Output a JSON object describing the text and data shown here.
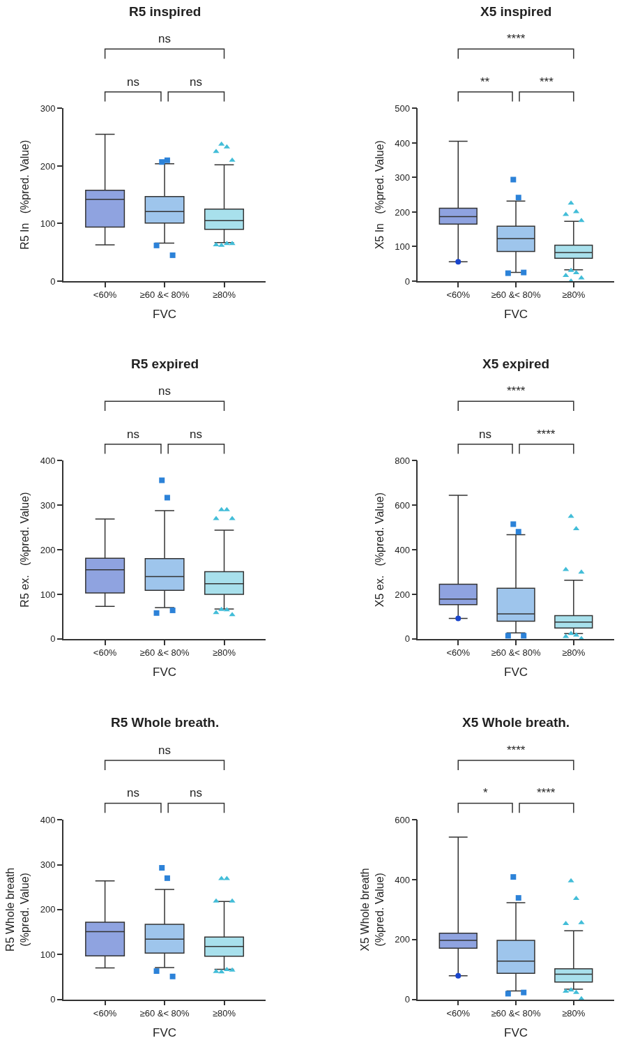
{
  "chart_data": [
    {
      "type": "box",
      "title": "R5 inspired",
      "xlabel": "FVC",
      "ylabel": "R5 In   (%pred. Value)",
      "categories": [
        "<60%",
        "≥60 &< 80%",
        "≥80%"
      ],
      "colors": [
        "#8fa3e0",
        "#9ec5ec",
        "#a8e0ec"
      ],
      "marker": [
        "circle",
        "square",
        "triangle"
      ],
      "ylim": [
        0,
        300
      ],
      "yticks": [
        0,
        100,
        200,
        300
      ],
      "annotations": [
        "ns",
        "ns",
        "ns"
      ],
      "boxes": [
        {
          "low": 63,
          "q1": 94,
          "median": 142,
          "q3": 158,
          "high": 255
        },
        {
          "low": 66,
          "q1": 101,
          "median": 121,
          "q3": 147,
          "high": 204,
          "outliers": [
            207,
            210,
            62,
            45
          ]
        },
        {
          "low": 67,
          "q1": 90,
          "median": 105,
          "q3": 125,
          "high": 202,
          "outliers": [
            238,
            233,
            225,
            210,
            62,
            65,
            63,
            65
          ]
        }
      ]
    },
    {
      "type": "box",
      "title": "X5 inspired",
      "xlabel": "FVC",
      "ylabel": "X5 In   (%pred. Value)",
      "categories": [
        "<60%",
        "≥60 &< 80%",
        "≥80%"
      ],
      "colors": [
        "#8fa3e0",
        "#9ec5ec",
        "#a8e0ec"
      ],
      "marker": [
        "circle",
        "square",
        "triangle"
      ],
      "ylim": [
        0,
        500
      ],
      "yticks": [
        0,
        100,
        200,
        300,
        400,
        500
      ],
      "annotations": [
        "****",
        "**",
        "***"
      ],
      "boxes": [
        {
          "low": 56,
          "q1": 165,
          "median": 187,
          "q3": 211,
          "high": 405,
          "outliers": [
            56
          ]
        },
        {
          "low": 25,
          "q1": 86,
          "median": 123,
          "q3": 159,
          "high": 232,
          "outliers": [
            294,
            242,
            23,
            25
          ]
        },
        {
          "low": 33,
          "q1": 66,
          "median": 83,
          "q3": 104,
          "high": 173,
          "outliers": [
            226,
            201,
            193,
            175,
            31,
            24,
            16,
            9,
            0
          ]
        }
      ]
    },
    {
      "type": "box",
      "title": "R5 expired",
      "xlabel": "FVC",
      "ylabel": "R5 ex.   (%pred. Value)",
      "categories": [
        "<60%",
        "≥60 &< 80%",
        "≥80%"
      ],
      "colors": [
        "#8fa3e0",
        "#9ec5ec",
        "#a8e0ec"
      ],
      "marker": [
        "circle",
        "square",
        "triangle"
      ],
      "ylim": [
        0,
        400
      ],
      "yticks": [
        0,
        100,
        200,
        300,
        400
      ],
      "annotations": [
        "ns",
        "ns",
        "ns"
      ],
      "boxes": [
        {
          "low": 73,
          "q1": 103,
          "median": 155,
          "q3": 181,
          "high": 269
        },
        {
          "low": 70,
          "q1": 109,
          "median": 140,
          "q3": 180,
          "high": 288,
          "outliers": [
            356,
            317,
            58,
            64
          ]
        },
        {
          "low": 67,
          "q1": 100,
          "median": 124,
          "q3": 151,
          "high": 244,
          "outliers": [
            290,
            290,
            270,
            270,
            66,
            65,
            59,
            54
          ]
        }
      ]
    },
    {
      "type": "box",
      "title": "X5 expired",
      "xlabel": "FVC",
      "ylabel": "X5 ex.   (%pred. Value)",
      "categories": [
        "<60%",
        "≥60 &< 80%",
        "≥80%"
      ],
      "colors": [
        "#8fa3e0",
        "#9ec5ec",
        "#a8e0ec"
      ],
      "marker": [
        "circle",
        "square",
        "triangle"
      ],
      "ylim": [
        0,
        800
      ],
      "yticks": [
        0,
        200,
        400,
        600,
        800
      ],
      "annotations": [
        "****",
        "ns",
        "****"
      ],
      "boxes": [
        {
          "low": 92,
          "q1": 154,
          "median": 179,
          "q3": 245,
          "high": 645,
          "outliers": [
            92
          ]
        },
        {
          "low": 27,
          "q1": 79,
          "median": 112,
          "q3": 227,
          "high": 468,
          "outliers": [
            515,
            481,
            14,
            14
          ]
        },
        {
          "low": 24,
          "q1": 49,
          "median": 75,
          "q3": 104,
          "high": 263,
          "outliers": [
            550,
            494,
            311,
            299,
            24,
            17,
            10,
            1
          ]
        }
      ]
    },
    {
      "type": "box",
      "title": "R5 Whole breath.",
      "xlabel": "FVC",
      "ylabel": "R5 Whole breath\n(%pred. Value)",
      "categories": [
        "<60%",
        "≥60 &< 80%",
        "≥80%"
      ],
      "colors": [
        "#8fa3e0",
        "#9ec5ec",
        "#a8e0ec"
      ],
      "marker": [
        "circle",
        "square",
        "triangle"
      ],
      "ylim": [
        0,
        400
      ],
      "yticks": [
        0,
        100,
        200,
        300,
        400
      ],
      "annotations": [
        "ns",
        "ns",
        "ns"
      ],
      "boxes": [
        {
          "low": 70,
          "q1": 97,
          "median": 151,
          "q3": 172,
          "high": 264
        },
        {
          "low": 71,
          "q1": 103,
          "median": 134,
          "q3": 167,
          "high": 245,
          "outliers": [
            293,
            270,
            63,
            51
          ]
        },
        {
          "low": 67,
          "q1": 96,
          "median": 118,
          "q3": 139,
          "high": 218,
          "outliers": [
            269,
            269,
            219,
            219,
            61,
            66,
            62,
            65
          ]
        }
      ]
    },
    {
      "type": "box",
      "title": "X5 Whole breath.",
      "xlabel": "FVC",
      "ylabel": "X5 Whole breath\n(%pred. Value)",
      "categories": [
        "<60%",
        "≥60 &< 80%",
        "≥80%"
      ],
      "colors": [
        "#8fa3e0",
        "#9ec5ec",
        "#a8e0ec"
      ],
      "marker": [
        "circle",
        "square",
        "triangle"
      ],
      "ylim": [
        0,
        600
      ],
      "yticks": [
        0,
        200,
        400,
        600
      ],
      "annotations": [
        "****",
        "*",
        "****"
      ],
      "boxes": [
        {
          "low": 79,
          "q1": 171,
          "median": 197,
          "q3": 221,
          "high": 542,
          "outliers": [
            79
          ]
        },
        {
          "low": 28,
          "q1": 87,
          "median": 128,
          "q3": 197,
          "high": 323,
          "outliers": [
            409,
            339,
            19,
            23
          ]
        },
        {
          "low": 34,
          "q1": 58,
          "median": 84,
          "q3": 102,
          "high": 229,
          "outliers": [
            396,
            337,
            253,
            256,
            31,
            23,
            27,
            2
          ]
        }
      ]
    }
  ]
}
